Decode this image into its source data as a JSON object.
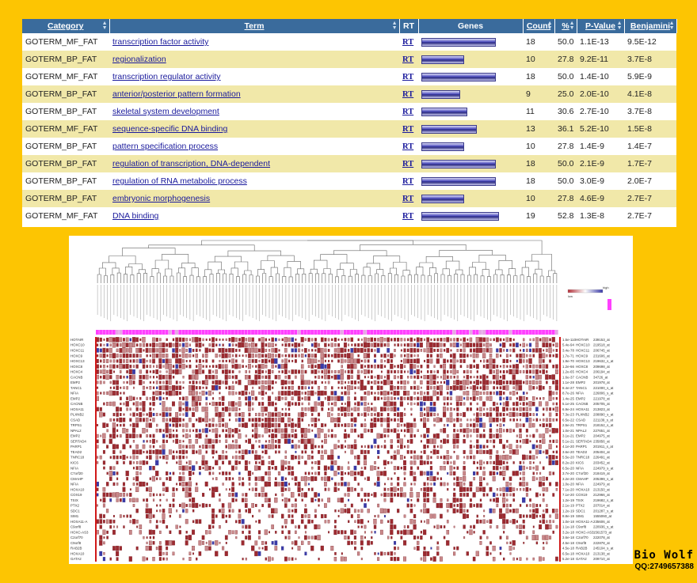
{
  "table": {
    "headers": {
      "category": "Category",
      "term": "Term",
      "rt": "RT",
      "genes": "Genes",
      "count": "Count",
      "percent": "%",
      "pvalue": "P-Value",
      "benjamini": "Benjamini"
    },
    "rows": [
      {
        "category": "GOTERM_MF_FAT",
        "term": "transcription factor activity",
        "rt": "RT",
        "count": "18",
        "percent": "50.0",
        "pvalue": "1.1E-13",
        "benjamini": "9.5E-12"
      },
      {
        "category": "GOTERM_BP_FAT",
        "term": "regionalization",
        "rt": "RT",
        "count": "10",
        "percent": "27.8",
        "pvalue": "9.2E-11",
        "benjamini": "3.7E-8"
      },
      {
        "category": "GOTERM_MF_FAT",
        "term": "transcription regulator activity",
        "rt": "RT",
        "count": "18",
        "percent": "50.0",
        "pvalue": "1.4E-10",
        "benjamini": "5.9E-9"
      },
      {
        "category": "GOTERM_BP_FAT",
        "term": "anterior/posterior pattern formation",
        "rt": "RT",
        "count": "9",
        "percent": "25.0",
        "pvalue": "2.0E-10",
        "benjamini": "4.1E-8"
      },
      {
        "category": "GOTERM_BP_FAT",
        "term": "skeletal system development",
        "rt": "RT",
        "count": "11",
        "percent": "30.6",
        "pvalue": "2.7E-10",
        "benjamini": "3.7E-8"
      },
      {
        "category": "GOTERM_MF_FAT",
        "term": "sequence-specific DNA binding",
        "rt": "RT",
        "count": "13",
        "percent": "36.1",
        "pvalue": "5.2E-10",
        "benjamini": "1.5E-8"
      },
      {
        "category": "GOTERM_BP_FAT",
        "term": "pattern specification process",
        "rt": "RT",
        "count": "10",
        "percent": "27.8",
        "pvalue": "1.4E-9",
        "benjamini": "1.4E-7"
      },
      {
        "category": "GOTERM_BP_FAT",
        "term": "regulation of transcription, DNA-dependent",
        "rt": "RT",
        "count": "18",
        "percent": "50.0",
        "pvalue": "2.1E-9",
        "benjamini": "1.7E-7"
      },
      {
        "category": "GOTERM_BP_FAT",
        "term": "regulation of RNA metabolic process",
        "rt": "RT",
        "count": "18",
        "percent": "50.0",
        "pvalue": "3.0E-9",
        "benjamini": "2.0E-7"
      },
      {
        "category": "GOTERM_BP_FAT",
        "term": "embryonic morphogenesis",
        "rt": "RT",
        "count": "10",
        "percent": "27.8",
        "pvalue": "4.6E-9",
        "benjamini": "2.7E-7"
      },
      {
        "category": "GOTERM_MF_FAT",
        "term": "DNA binding",
        "rt": "RT",
        "count": "19",
        "percent": "52.8",
        "pvalue": "1.3E-8",
        "benjamini": "2.7E-7"
      }
    ]
  },
  "heatmap": {
    "genes_left": [
      "HOTAIR",
      "HOXC10",
      "HOXC11",
      "HOXC9",
      "HOXC13",
      "HOXC8",
      "HOXC4",
      "CACNB",
      "EMP2",
      "TANC1",
      "NFIA",
      "EMP2",
      "CACNB",
      "HOXA11",
      "PLXNB2",
      "CSAD",
      "TRPS1",
      "NPAL2",
      "EMP2",
      "SERTAD4",
      "PARP1",
      "TEAD2",
      "TNRC18",
      "KIC6",
      "NFIA",
      "C7orf20",
      "CMAHP",
      "NFIA",
      "HOXA10",
      "COX19",
      "TSIX",
      "PTX2",
      "SDC1",
      "SIM1",
      "HOXA11-A",
      "C9orf8",
      "HOXC-AS3",
      "C2orf70",
      "C9orf8",
      "RAB2B",
      "HOXA10",
      "GATA2"
    ],
    "genes_right": [
      "HOTAIR",
      "HOXC10",
      "HOXC11",
      "HOXC9",
      "HOXC13",
      "HOXC8",
      "HOXC4",
      "CACNB",
      "EMP2",
      "TANC1",
      "NFIA",
      "EMP2",
      "CACNB",
      "HOXA11",
      "PLXNB2",
      "CSAD",
      "TRPS1",
      "NPAL2",
      "EMP2",
      "SERTAD4",
      "PARP1",
      "TEAD2",
      "TNRC18",
      "KIC6",
      "NFIA",
      "C7orf20",
      "CMAHP",
      "NFIA",
      "HOXA10",
      "COX19",
      "TSIX",
      "PTX2",
      "SDC1",
      "SIM1",
      "HOXA11-A",
      "C9orf8",
      "HOXC-AS3",
      "C2orf70",
      "C9orf8",
      "RAB2B",
      "HOXA10",
      "GATA2"
    ],
    "pvalues": [
      "1.5e-110",
      "5.4e-94",
      "3.4e-78",
      "1.7e-71",
      "1.9e-70",
      "1.2e-66",
      "1.2e-65",
      "1.6e-37",
      "1.1e-28",
      "8.4e-27",
      "8.7e-26",
      "1.4e-25",
      "5.1e-25",
      "6.9e-24",
      "7.3e-23",
      "6.5e-22",
      "2.5e-21",
      "1.0e-21",
      "3.1e-21",
      "5.1e-21",
      "4.1e-20",
      "3.6e-20",
      "5.5e-20",
      "8.2e-20",
      "6.5e-20",
      "3.7e-20",
      "3.2e-20",
      "1.0e-20",
      "7.1e-20",
      "7.1e-20",
      "1.2e-19",
      "2.1e-19",
      "1.2e-19",
      "8.8e-19",
      "1.0e-18",
      "1.1e-18",
      "3.2e-18",
      "3.6e-18",
      "4.5e-18",
      "4.5e-18",
      "6.5e-18",
      "5.2e-18"
    ],
    "probes": [
      "239153_at",
      "219518_at",
      "206745_at",
      "231606_at",
      "219632_s_at",
      "209698_at",
      "206194_at",
      "34726_at",
      "201978_at",
      "221000_s_at",
      "226806_s_at",
      "221978_at",
      "205705_at",
      "213823_at",
      "208890_s_at",
      "221139_s_at",
      "218152_s_at",
      "227651_at",
      "204975_at",
      "235856_at",
      "201911_s_at",
      "205404_at",
      "226491_at",
      "203452_at",
      "224979_s_at",
      "218419_at",
      "205399_s_at",
      "224979_at",
      "213150_at",
      "212966_at",
      "219682_s_at",
      "207014_at",
      "201287_s_at",
      "1555060_at",
      "235606_at",
      "220936_s_at",
      "1561573_at",
      "222078_at",
      "222878_at",
      "245104_s_at",
      "213138_at",
      "209710_at"
    ],
    "legend": {
      "low_label": "low",
      "high_label": "high",
      "low_color": "#b5303a",
      "mid_color": "#ffffff",
      "high_color": "#3a3aa8",
      "tag_color": "#ff40ff"
    },
    "column_count": 140,
    "row_count": 42
  },
  "watermark": {
    "title": "Bio Wolf",
    "contact": "QQ:2749657388"
  }
}
